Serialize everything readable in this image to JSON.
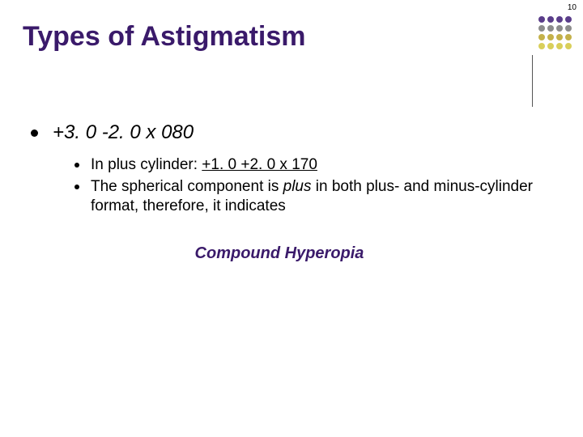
{
  "slide_number": "10",
  "title": "Types of Astigmatism",
  "dot_colors": [
    "#5a3d8a",
    "#5a3d8a",
    "#5a3d8a",
    "#5a3d8a",
    "#8c8c8c",
    "#8c8c8c",
    "#8c8c8c",
    "#8c8c8c",
    "#c4b14a",
    "#c4b14a",
    "#c4b14a",
    "#c4b14a",
    "#d9cf5a",
    "#d9cf5a",
    "#d9cf5a",
    "#d9cf5a"
  ],
  "main_bullet": "+3. 0 -2. 0 x 080",
  "sub1_prefix": "In plus cylinder: ",
  "sub1_underlined": "+1. 0 +2. 0 x 170",
  "sub2_a": "The spherical component is ",
  "sub2_plus": "plus",
  "sub2_b": " in both plus- and minus-cylinder format, therefore, it indicates",
  "conclusion": "Compound Hyperopia"
}
